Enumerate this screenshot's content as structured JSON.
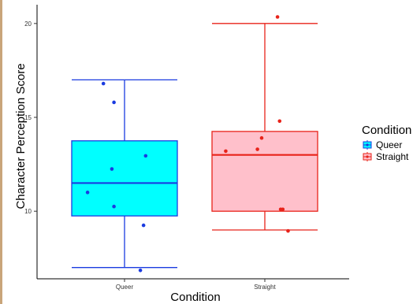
{
  "chart_data": {
    "type": "boxplot",
    "xlabel": "Condition",
    "ylabel": "Character Perception Score",
    "categories": [
      "Queer",
      "Straight"
    ],
    "yticks": [
      10,
      15,
      20
    ],
    "ylim": [
      6.4,
      21
    ],
    "grid": false,
    "legend": {
      "title": "Condition",
      "placement": "right",
      "entries": [
        "Queer",
        "Straight"
      ]
    },
    "boxes": [
      {
        "name": "Queer",
        "whisker_low": 7.0,
        "q1": 9.75,
        "median": 11.5,
        "q3": 13.75,
        "whisker_high": 17.0,
        "points": [
          {
            "x_offset": -0.35,
            "y": 11.0
          },
          {
            "x_offset": -0.2,
            "y": 16.8
          },
          {
            "x_offset": -0.1,
            "y": 15.8
          },
          {
            "x_offset": -0.12,
            "y": 12.25
          },
          {
            "x_offset": -0.1,
            "y": 10.25
          },
          {
            "x_offset": 0.2,
            "y": 12.95
          },
          {
            "x_offset": 0.18,
            "y": 9.25
          },
          {
            "x_offset": 0.15,
            "y": 6.85
          }
        ],
        "fill": "#00ffff",
        "stroke": "#1a3be0",
        "point_color": "#1a3be0"
      },
      {
        "name": "Straight",
        "whisker_low": 9.0,
        "q1": 10.0,
        "median": 13.0,
        "q3": 14.25,
        "whisker_high": 20.0,
        "points": [
          {
            "x_offset": -0.37,
            "y": 13.2
          },
          {
            "x_offset": -0.07,
            "y": 13.3
          },
          {
            "x_offset": -0.03,
            "y": 13.9
          },
          {
            "x_offset": 0.12,
            "y": 20.35
          },
          {
            "x_offset": 0.14,
            "y": 14.8
          },
          {
            "x_offset": 0.15,
            "y": 10.1
          },
          {
            "x_offset": 0.17,
            "y": 10.1
          },
          {
            "x_offset": 0.22,
            "y": 8.95
          }
        ],
        "fill": "#ffc0cb",
        "stroke": "#e8231a",
        "point_color": "#e8231a"
      }
    ]
  }
}
